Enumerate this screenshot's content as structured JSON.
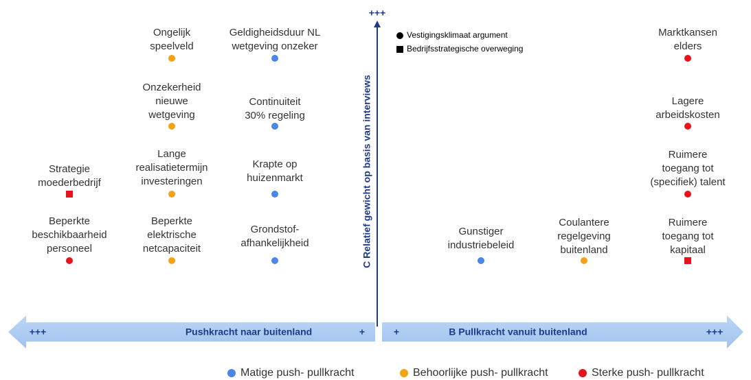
{
  "diagram": {
    "vertical_axis": {
      "label": "C Relatief gewicht op basis van interviews",
      "top": "+++"
    },
    "horizontal_axis": {
      "left": {
        "label": "Pushkracht naar buitenland",
        "far": "+++",
        "near": "+"
      },
      "right": {
        "label": "B Pullkracht vanuit buitenland",
        "near": "+",
        "far": "+++"
      }
    },
    "shape_legend": [
      {
        "shape": "circle",
        "label": "Vestigingsklimaat argument"
      },
      {
        "shape": "square",
        "label": "Bedrijfsstrategische overweging"
      }
    ],
    "color_legend": [
      {
        "color": "#4a86e8",
        "label": "Matige push- pullkracht"
      },
      {
        "color": "#f5a316",
        "label": "Behoorlijke push- pullkracht"
      },
      {
        "color": "#e8141c",
        "label": "Sterke push- pullkracht"
      }
    ],
    "factors": [
      {
        "lines": [
          "Ongelijk",
          "speelveld"
        ],
        "color": "#f5a316",
        "shape": "circle"
      },
      {
        "lines": [
          "Geldigheidsduur NL",
          "wetgeving onzeker"
        ],
        "color": "#4a86e8",
        "shape": "circle"
      },
      {
        "lines": [
          "Marktkansen",
          "elders"
        ],
        "color": "#e8141c",
        "shape": "circle"
      },
      {
        "lines": [
          "Onzekerheid",
          "nieuwe",
          "wetgeving"
        ],
        "color": "#f5a316",
        "shape": "circle"
      },
      {
        "lines": [
          "Continuiteit",
          "30% regeling"
        ],
        "color": "#4a86e8",
        "shape": "circle"
      },
      {
        "lines": [
          "Lagere",
          "arbeidskosten"
        ],
        "color": "#e8141c",
        "shape": "circle"
      },
      {
        "lines": [
          "Strategie",
          "moederbedrijf"
        ],
        "color": "#e8141c",
        "shape": "square"
      },
      {
        "lines": [
          "Lange",
          "realisatietermijn",
          "investeringen"
        ],
        "color": "#f5a316",
        "shape": "circle"
      },
      {
        "lines": [
          "Krapte op",
          "huizenmarkt"
        ],
        "color": "#4a86e8",
        "shape": "circle"
      },
      {
        "lines": [
          "Ruimere",
          "toegang tot",
          "(specifiek) talent"
        ],
        "color": "#e8141c",
        "shape": "circle"
      },
      {
        "lines": [
          "Beperkte",
          "beschikbaarheid",
          "personeel"
        ],
        "color": "#e8141c",
        "shape": "circle"
      },
      {
        "lines": [
          "Beperkte",
          "elektrische",
          "netcapaciteit"
        ],
        "color": "#f5a316",
        "shape": "circle"
      },
      {
        "lines": [
          "Grondstof-",
          "afhankelijkheid"
        ],
        "color": "#4a86e8",
        "shape": "circle"
      },
      {
        "lines": [
          "Gunstiger",
          "industriebeleid"
        ],
        "color": "#4a86e8",
        "shape": "circle"
      },
      {
        "lines": [
          "Coulantere",
          "regelgeving",
          "buitenland"
        ],
        "color": "#f5a316",
        "shape": "circle"
      },
      {
        "lines": [
          "Ruimere",
          "toegang tot",
          "kapitaal"
        ],
        "color": "#e8141c",
        "shape": "square"
      }
    ]
  }
}
